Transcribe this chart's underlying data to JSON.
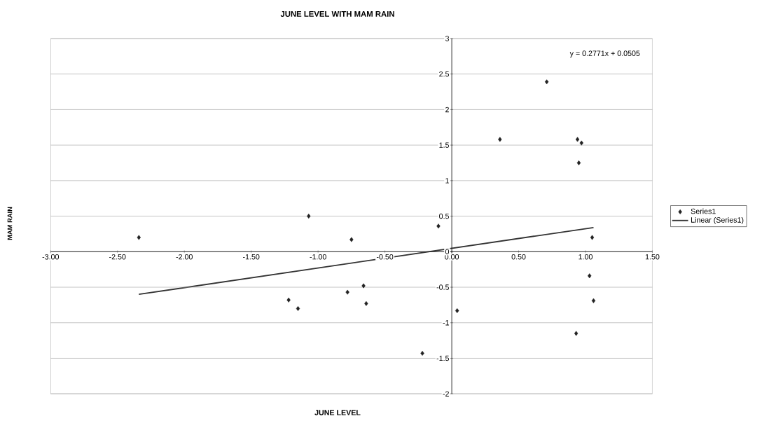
{
  "chart_data": {
    "type": "scatter",
    "title": "JUNE LEVEL WITH MAM RAIN",
    "xlabel": "JUNE LEVEL",
    "ylabel": "MAM RAIN",
    "annotations": [
      "y = 0.2771x + 0.0505"
    ],
    "xlim": [
      -3,
      1.5
    ],
    "xticks": [
      {
        "value": -3,
        "label": "-3.00"
      },
      {
        "value": -2.5,
        "label": "-2.50"
      },
      {
        "value": -2,
        "label": "-2.00"
      },
      {
        "value": -1.5,
        "label": "-1.50"
      },
      {
        "value": -1,
        "label": "-1.00"
      },
      {
        "value": -0.5,
        "label": "-0.50"
      },
      {
        "value": 0,
        "label": "0.00"
      },
      {
        "value": 0.5,
        "label": "0.50"
      },
      {
        "value": 1,
        "label": "1.00"
      },
      {
        "value": 1.5,
        "label": "1.50"
      }
    ],
    "ylim": [
      -2,
      3
    ],
    "yticks": [
      -2,
      -1.5,
      -1,
      -0.5,
      0,
      0.5,
      1,
      1.5,
      2,
      2.5,
      3
    ],
    "grid": "y",
    "legend": "right",
    "series": [
      {
        "name": "Series1",
        "marker": "diamond",
        "color": "#222222",
        "x": [
          -2.34,
          -1.07,
          -0.75,
          -0.1,
          -1.22,
          -1.15,
          -0.78,
          -0.66,
          -0.64,
          -0.22,
          0.71,
          0.36,
          0.94,
          0.97,
          0.95,
          1.05,
          1.03,
          1.06,
          0.04,
          0.93
        ],
        "values": [
          0.2,
          0.5,
          0.17,
          0.36,
          -0.68,
          -0.8,
          -0.57,
          -0.48,
          -0.73,
          -1.43,
          2.39,
          1.58,
          1.58,
          1.53,
          1.25,
          0.2,
          -0.34,
          -0.69,
          -0.83,
          -1.15
        ]
      },
      {
        "name": "Linear (Series1)",
        "type": "line",
        "marker": "none",
        "color": "#333333",
        "line_style": "solid",
        "x": [
          -2.34,
          1.06
        ],
        "values": [
          -0.6,
          0.34
        ]
      }
    ]
  }
}
